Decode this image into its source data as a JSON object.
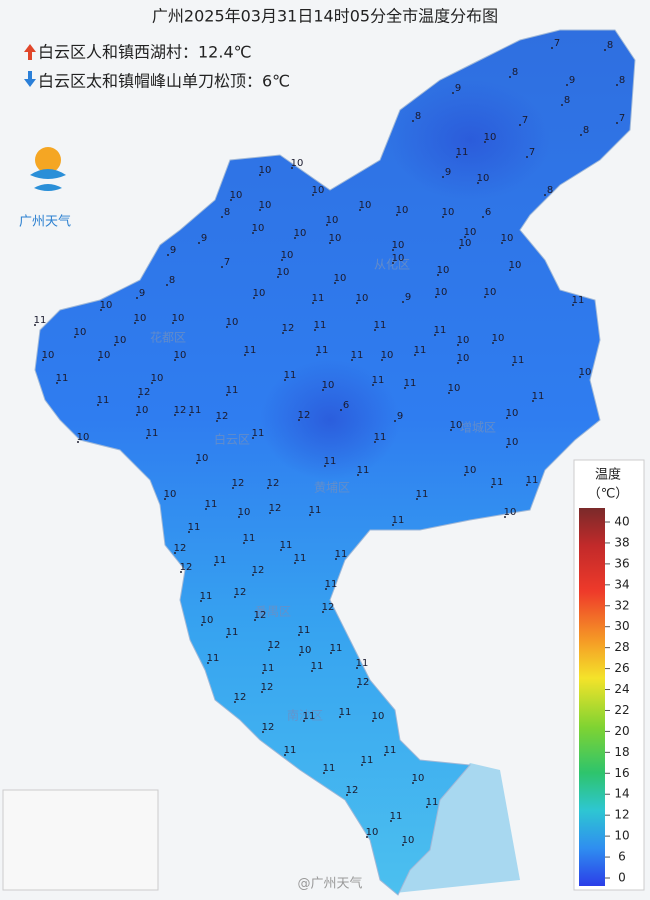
{
  "header": {
    "title": "广州2025年03月31日14时05分全市温度分布图",
    "max_note": "白云区人和镇西湖村：12.4℃",
    "min_note": "白云区太和镇帽峰山单刀松顶：6℃"
  },
  "logo": {
    "text": "广州天气"
  },
  "legend": {
    "title": "温度",
    "unit": "（℃）",
    "ticks": [
      40,
      38,
      36,
      34,
      32,
      30,
      28,
      26,
      24,
      22,
      20,
      18,
      16,
      14,
      12,
      10,
      6,
      0
    ]
  },
  "districts": [
    "花都区",
    "从化区",
    "白云区",
    "增城区",
    "黄埔区",
    "番禺区",
    "南沙区"
  ],
  "stations": {
    "values": [
      7,
      8,
      8,
      9,
      8,
      9,
      8,
      8,
      10,
      7,
      8,
      7,
      11,
      7,
      10,
      9,
      10,
      10,
      10,
      8,
      10,
      10,
      10,
      10,
      10,
      6,
      8,
      10,
      10,
      10,
      10,
      10,
      10,
      9,
      10,
      10,
      9,
      10,
      7,
      10,
      8,
      10,
      10,
      10,
      10,
      9,
      10,
      10,
      10,
      9,
      10,
      11,
      10,
      10,
      11,
      10,
      11,
      10,
      10,
      12,
      11,
      11,
      11,
      10,
      10,
      10,
      10,
      10,
      10,
      11,
      11,
      11,
      10,
      11,
      10,
      11,
      11,
      10,
      11,
      10,
      11,
      11,
      10,
      10,
      11,
      12,
      11,
      11,
      12,
      12,
      6,
      9,
      10,
      10,
      11,
      10,
      11,
      10,
      11,
      11,
      10,
      11,
      10,
      10,
      12,
      12,
      11,
      10,
      11,
      11,
      11,
      11,
      12,
      11,
      10,
      11,
      10,
      11,
      11,
      12,
      11,
      11,
      11,
      11,
      12,
      12,
      11,
      11,
      12,
      12,
      10,
      12,
      11,
      11,
      12,
      10,
      11,
      11,
      11,
      11,
      11,
      12,
      12,
      12,
      11,
      10,
      11,
      12,
      11,
      11,
      11,
      11,
      10,
      12,
      11,
      11,
      10,
      10,
      12
    ],
    "note": "@广州天气"
  }
}
